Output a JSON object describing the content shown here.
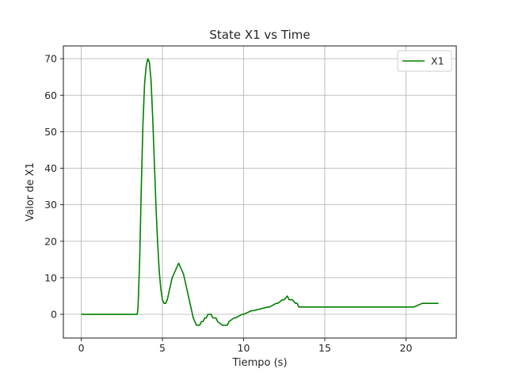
{
  "chart_data": {
    "type": "line",
    "title": "State X1 vs Time",
    "xlabel": "Tiempo (s)",
    "ylabel": "Valor de X1",
    "xlim": [
      -1.1,
      23.1
    ],
    "ylim": [
      -6.5,
      73.5
    ],
    "xticks": [
      0,
      5,
      10,
      15,
      20
    ],
    "yticks": [
      0,
      10,
      20,
      30,
      40,
      50,
      60,
      70
    ],
    "grid": true,
    "legend_position": "top-right",
    "series": [
      {
        "name": "X1",
        "color": "#008000",
        "x": [
          0,
          0.5,
          1,
          1.5,
          2,
          2.5,
          3,
          3.45,
          3.5,
          3.6,
          3.7,
          3.8,
          3.9,
          4.0,
          4.1,
          4.2,
          4.3,
          4.4,
          4.5,
          4.6,
          4.7,
          4.8,
          4.9,
          5.0,
          5.1,
          5.2,
          5.3,
          5.4,
          5.5,
          5.6,
          5.7,
          5.8,
          5.9,
          6.0,
          6.1,
          6.2,
          6.3,
          6.4,
          6.5,
          6.6,
          6.7,
          6.8,
          6.9,
          7.0,
          7.1,
          7.2,
          7.3,
          7.4,
          7.5,
          7.6,
          7.7,
          7.8,
          7.9,
          8.0,
          8.1,
          8.3,
          8.4,
          8.7,
          8.8,
          9.0,
          9.1,
          9.4,
          9.5,
          9.9,
          10.0,
          10.5,
          10.6,
          11.5,
          11.6,
          12.0,
          12.1,
          12.4,
          12.5,
          12.7,
          12.8,
          12.9,
          13.0,
          13.2,
          13.3,
          13.4,
          13.5,
          14.0,
          14.1,
          14.4,
          14.5,
          20.0,
          20.5,
          21.0,
          21.5,
          22.0
        ],
        "y": [
          0,
          0,
          0,
          0,
          0,
          0,
          0,
          0,
          2,
          15,
          35,
          52,
          63,
          68,
          70,
          69,
          64,
          54,
          42,
          30,
          20,
          12,
          7,
          4,
          3,
          3,
          4,
          6,
          8,
          10,
          11,
          12,
          13,
          14,
          13,
          12,
          11,
          9,
          7,
          5,
          3,
          1,
          -1,
          -2,
          -3,
          -3,
          -3,
          -2,
          -2,
          -1,
          -1,
          0,
          0,
          0,
          -1,
          -1,
          -2,
          -3,
          -3,
          -3,
          -2,
          -1,
          -1,
          0,
          0,
          1,
          1,
          2,
          2,
          3,
          3,
          4,
          4,
          5,
          4,
          4,
          4,
          3,
          3,
          2,
          2,
          2,
          2,
          2,
          2,
          2,
          2,
          3,
          3,
          3
        ]
      }
    ]
  }
}
